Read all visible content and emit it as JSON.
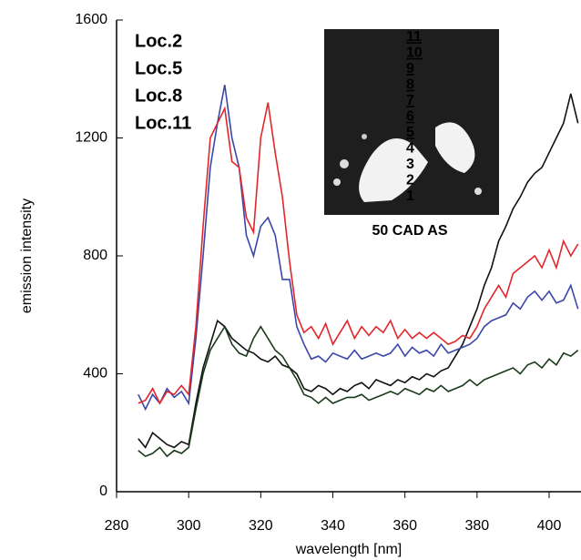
{
  "chart_data": {
    "type": "line",
    "x_label": "wavelength [nm]",
    "y_label": "emission intensity",
    "xlim": [
      280,
      409
    ],
    "ylim": [
      0,
      1600
    ],
    "xticks": [
      280,
      300,
      320,
      340,
      360,
      380,
      400
    ],
    "yticks": [
      0,
      400,
      800,
      1200,
      1600
    ],
    "x": [
      286,
      288,
      290,
      292,
      294,
      296,
      298,
      300,
      302,
      304,
      306,
      308,
      310,
      312,
      314,
      316,
      318,
      320,
      322,
      324,
      326,
      328,
      330,
      332,
      334,
      336,
      338,
      340,
      342,
      344,
      346,
      348,
      350,
      352,
      354,
      356,
      358,
      360,
      362,
      364,
      366,
      368,
      370,
      372,
      374,
      376,
      378,
      380,
      382,
      384,
      386,
      388,
      390,
      392,
      394,
      396,
      398,
      400,
      402,
      404,
      406,
      408
    ],
    "series": [
      {
        "name": "Loc.2",
        "color": "#111111",
        "values": [
          180,
          150,
          200,
          180,
          160,
          150,
          170,
          160,
          300,
          420,
          500,
          580,
          560,
          520,
          500,
          480,
          470,
          450,
          440,
          460,
          430,
          420,
          400,
          350,
          340,
          360,
          350,
          330,
          350,
          340,
          360,
          370,
          350,
          380,
          370,
          360,
          380,
          370,
          390,
          380,
          400,
          390,
          410,
          420,
          460,
          500,
          560,
          620,
          700,
          760,
          850,
          900,
          960,
          1000,
          1050,
          1080,
          1100,
          1150,
          1200,
          1250,
          1350,
          1250
        ]
      },
      {
        "name": "Loc.5",
        "color": "#3a47a8",
        "values": [
          330,
          280,
          330,
          300,
          350,
          320,
          340,
          300,
          520,
          800,
          1100,
          1250,
          1380,
          1200,
          1100,
          870,
          800,
          900,
          930,
          870,
          720,
          720,
          560,
          500,
          450,
          460,
          440,
          470,
          460,
          450,
          480,
          450,
          460,
          470,
          460,
          470,
          500,
          460,
          490,
          470,
          480,
          460,
          500,
          470,
          480,
          490,
          500,
          520,
          560,
          580,
          590,
          600,
          640,
          620,
          660,
          680,
          650,
          680,
          640,
          650,
          700,
          620
        ]
      },
      {
        "name": "Loc.8",
        "color": "#e3262b",
        "values": [
          300,
          310,
          350,
          300,
          340,
          330,
          360,
          330,
          560,
          900,
          1200,
          1250,
          1300,
          1120,
          1100,
          930,
          880,
          1200,
          1320,
          1150,
          1000,
          780,
          600,
          540,
          560,
          520,
          570,
          500,
          540,
          580,
          520,
          560,
          530,
          560,
          540,
          580,
          520,
          550,
          520,
          540,
          520,
          540,
          520,
          500,
          510,
          530,
          520,
          560,
          620,
          660,
          700,
          660,
          740,
          760,
          780,
          800,
          760,
          820,
          760,
          850,
          800,
          840
        ]
      },
      {
        "name": "Loc.11",
        "color": "#1c3a1c",
        "values": [
          140,
          120,
          130,
          150,
          120,
          140,
          130,
          150,
          280,
          400,
          480,
          520,
          560,
          500,
          470,
          460,
          520,
          560,
          520,
          480,
          460,
          420,
          380,
          330,
          320,
          300,
          320,
          300,
          310,
          320,
          320,
          330,
          310,
          320,
          330,
          340,
          330,
          350,
          340,
          330,
          350,
          340,
          360,
          340,
          350,
          360,
          380,
          360,
          380,
          390,
          400,
          410,
          420,
          400,
          430,
          440,
          420,
          450,
          430,
          470,
          460,
          480
        ]
      }
    ],
    "inset": {
      "labels": [
        "11",
        "10",
        "9",
        "8",
        "7",
        "6",
        "5",
        "4",
        "3",
        "2",
        "1"
      ],
      "caption": "50 CAD AS"
    }
  }
}
